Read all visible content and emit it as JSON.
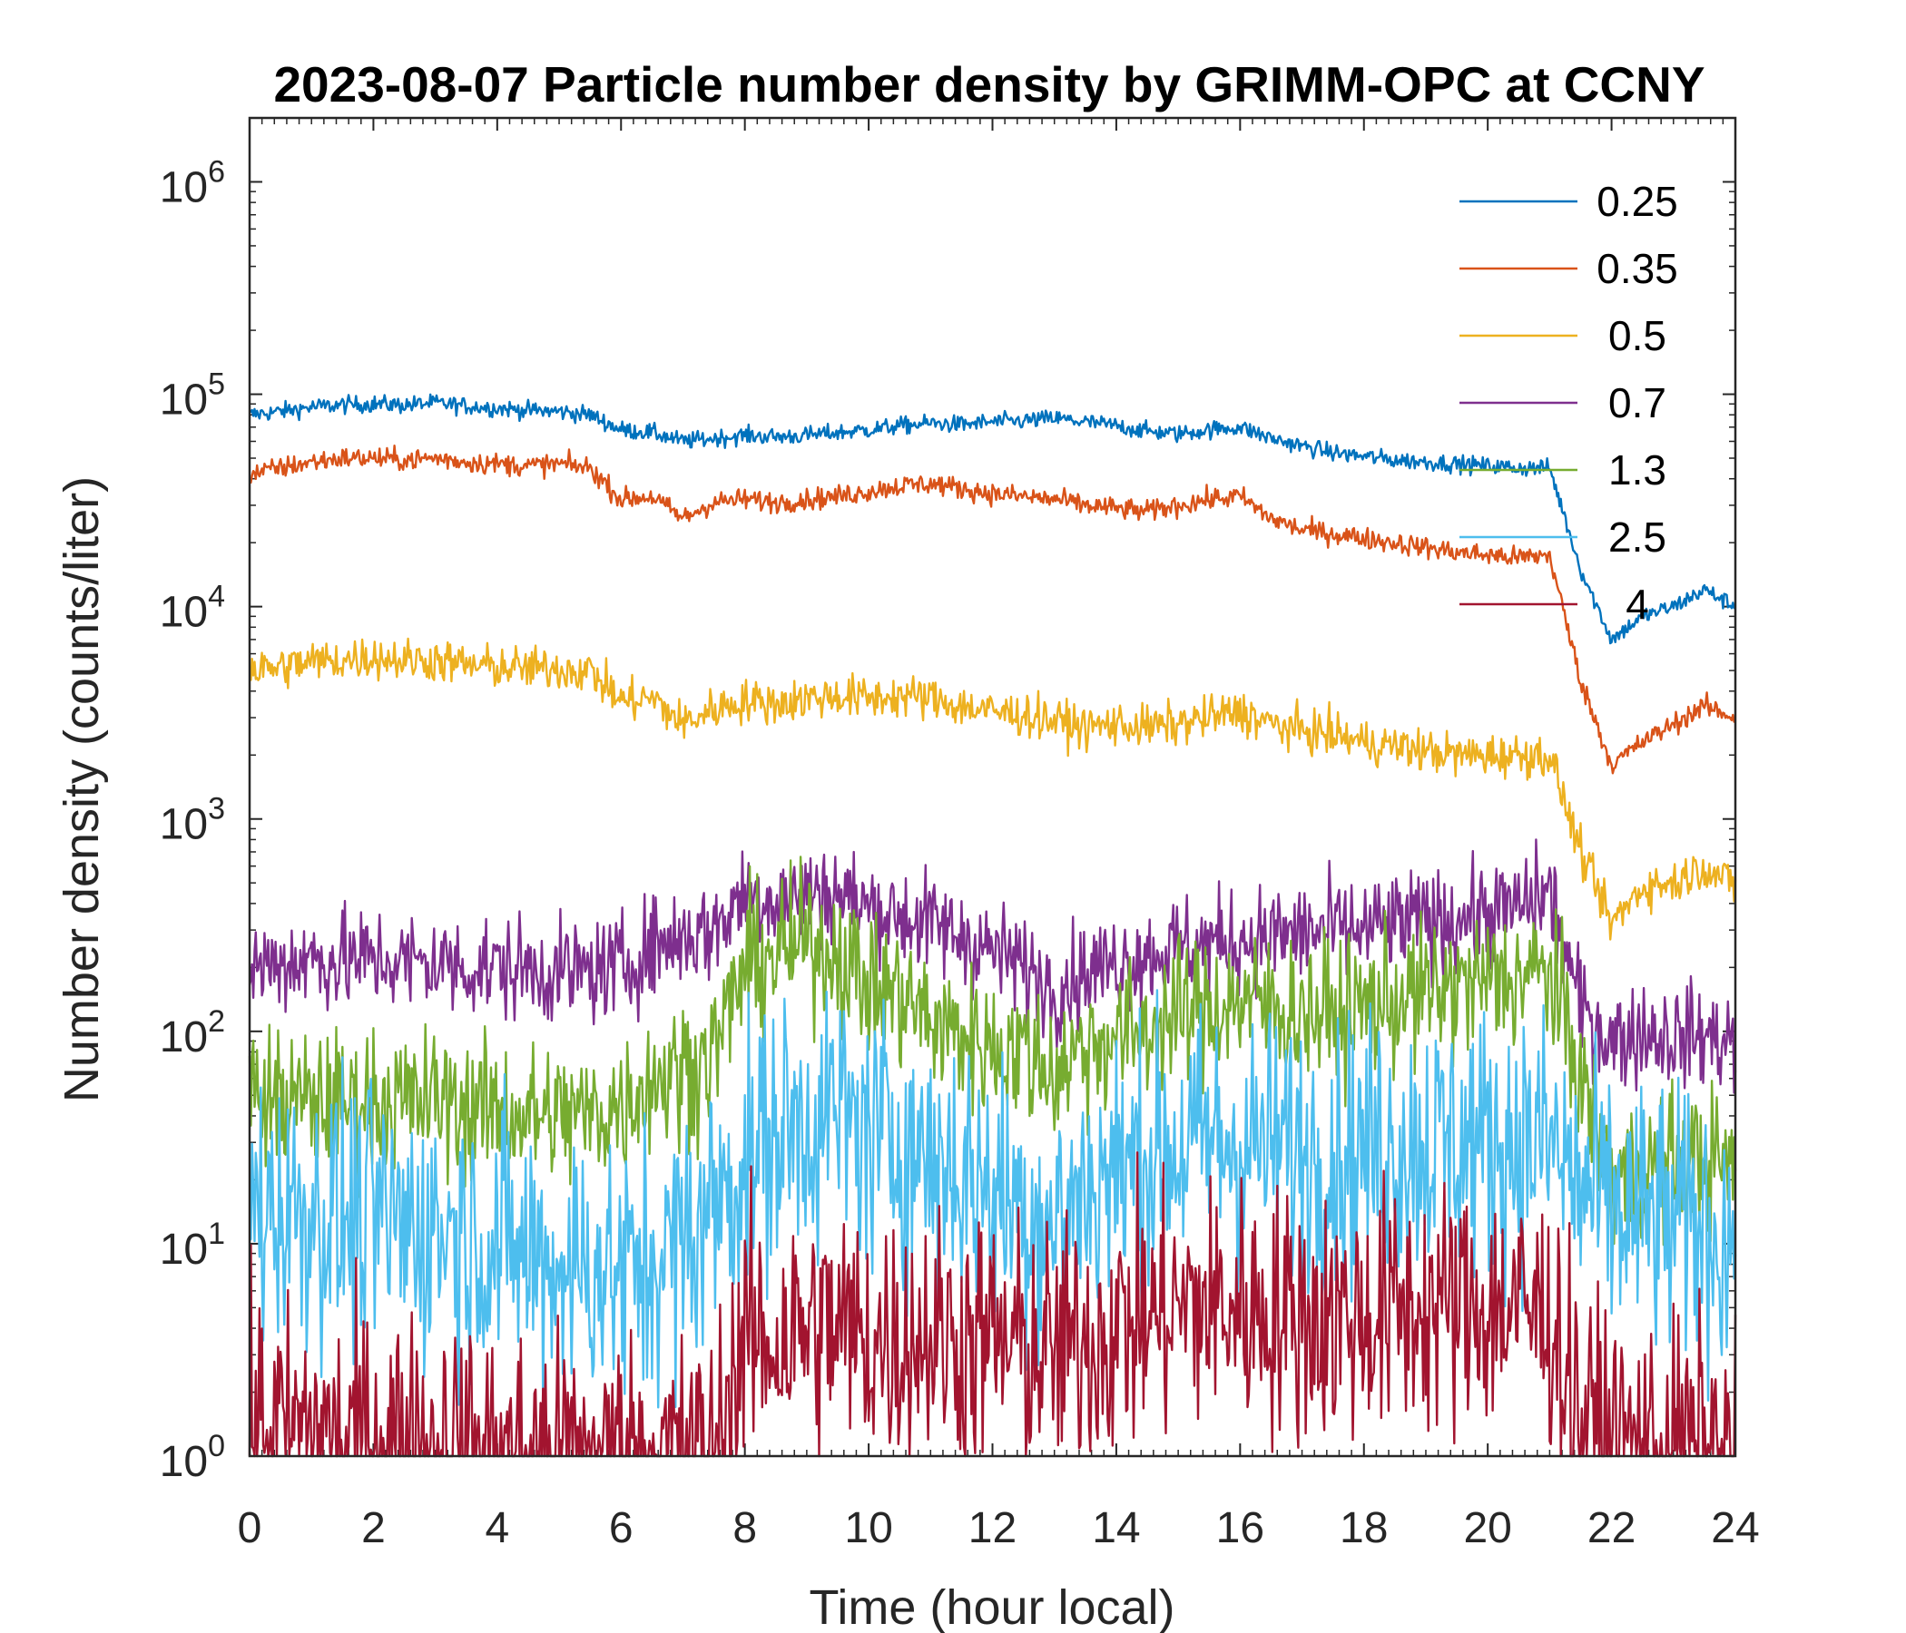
{
  "chart_data": {
    "type": "line",
    "title": "2023-08-07 Particle number density by GRIMM-OPC at CCNY",
    "xlabel": "Time (hour local)",
    "ylabel": "Number density (counts/liter)",
    "xlim": [
      0,
      24
    ],
    "ylim": [
      1,
      2000000
    ],
    "yscale": "log",
    "xticks": [
      "0",
      "2",
      "4",
      "6",
      "8",
      "10",
      "12",
      "14",
      "16",
      "18",
      "20",
      "22",
      "24"
    ],
    "yticks": [
      {
        "base": "10",
        "exp": "0"
      },
      {
        "base": "10",
        "exp": "1"
      },
      {
        "base": "10",
        "exp": "2"
      },
      {
        "base": "10",
        "exp": "3"
      },
      {
        "base": "10",
        "exp": "4"
      },
      {
        "base": "10",
        "exp": "5"
      },
      {
        "base": "10",
        "exp": "6"
      }
    ],
    "legend_position": "top-right",
    "x": [
      0,
      0.5,
      1,
      1.5,
      2,
      2.5,
      3,
      3.5,
      4,
      4.5,
      5,
      5.5,
      6,
      6.5,
      7,
      7.5,
      8,
      8.5,
      9,
      9.5,
      10,
      10.5,
      11,
      11.5,
      12,
      12.5,
      13,
      13.5,
      14,
      14.5,
      15,
      15.5,
      16,
      16.5,
      17,
      17.5,
      18,
      18.5,
      19,
      19.5,
      20,
      20.5,
      21,
      21.5,
      22,
      22.5,
      23,
      23.5,
      24
    ],
    "series": [
      {
        "name": "0.25",
        "color": "#0072BD",
        "noise": 0.02,
        "values": [
          80000,
          83000,
          87000,
          89000,
          90000,
          89000,
          91000,
          88000,
          86000,
          84000,
          83000,
          80000,
          68000,
          66000,
          60000,
          62000,
          64000,
          63000,
          64000,
          66000,
          68000,
          71000,
          73000,
          72000,
          74000,
          75000,
          77000,
          74000,
          71000,
          67000,
          65000,
          68000,
          70000,
          62000,
          57000,
          53000,
          51000,
          49000,
          48000,
          47000,
          46000,
          45000,
          45000,
          15000,
          7000,
          9000,
          10000,
          12000,
          10000
        ]
      },
      {
        "name": "0.35",
        "color": "#D95319",
        "noise": 0.025,
        "values": [
          42000,
          45000,
          48000,
          50000,
          50000,
          49000,
          50000,
          48000,
          47000,
          46000,
          47000,
          45000,
          32000,
          33000,
          26000,
          31000,
          32000,
          31000,
          32000,
          33000,
          35000,
          37000,
          38000,
          36000,
          34000,
          33000,
          32000,
          30000,
          29000,
          28000,
          30000,
          32000,
          33000,
          26000,
          23000,
          22000,
          21000,
          20000,
          19000,
          18000,
          17500,
          17000,
          17500,
          4500,
          1800,
          2300,
          2800,
          3400,
          3000
        ]
      },
      {
        "name": "0.5",
        "color": "#EDB120",
        "noise": 0.05,
        "values": [
          5000,
          5200,
          5500,
          5600,
          5800,
          5600,
          5600,
          5300,
          5200,
          5100,
          5100,
          5000,
          3600,
          3700,
          2800,
          3300,
          3600,
          3500,
          3700,
          3800,
          3700,
          3800,
          3700,
          3400,
          3200,
          3100,
          2900,
          2700,
          2800,
          2700,
          2800,
          3000,
          3200,
          2800,
          2600,
          2500,
          2300,
          2200,
          2100,
          2000,
          2000,
          2000,
          2000,
          700,
          320,
          480,
          500,
          600,
          480
        ]
      },
      {
        "name": "0.7",
        "color": "#7E2F8E",
        "noise": 0.12,
        "values": [
          200,
          210,
          220,
          215,
          220,
          210,
          210,
          200,
          200,
          195,
          190,
          190,
          200,
          250,
          280,
          300,
          450,
          420,
          440,
          450,
          380,
          350,
          320,
          280,
          240,
          200,
          160,
          190,
          210,
          230,
          250,
          260,
          270,
          280,
          290,
          300,
          300,
          320,
          330,
          340,
          360,
          380,
          450,
          130,
          90,
          100,
          95,
          95,
          90
        ]
      },
      {
        "name": "1.3",
        "color": "#77AC30",
        "noise": 0.17,
        "values": [
          50,
          48,
          46,
          45,
          48,
          46,
          48,
          44,
          42,
          40,
          40,
          40,
          45,
          60,
          65,
          80,
          200,
          230,
          260,
          240,
          160,
          150,
          110,
          95,
          85,
          80,
          65,
          85,
          95,
          100,
          120,
          130,
          140,
          130,
          125,
          120,
          130,
          140,
          150,
          160,
          170,
          180,
          190,
          60,
          20,
          22,
          25,
          25,
          22
        ]
      },
      {
        "name": "2.5",
        "color": "#4DBEEE",
        "noise": 0.32,
        "values": [
          15,
          15,
          14,
          13,
          13,
          12,
          12,
          11,
          10,
          9,
          8,
          8,
          7,
          8,
          10,
          15,
          25,
          32,
          38,
          40,
          32,
          30,
          25,
          22,
          18,
          15,
          12,
          18,
          22,
          25,
          28,
          30,
          30,
          28,
          27,
          26,
          28,
          30,
          30,
          30,
          30,
          30,
          30,
          18,
          14,
          13,
          12,
          12,
          10
        ]
      },
      {
        "name": "4",
        "color": "#A2142F",
        "noise": 0.3,
        "values": [
          1.4,
          1.3,
          1.3,
          1.2,
          1.2,
          1.2,
          1.1,
          1.1,
          1.0,
          1.0,
          1.0,
          1.0,
          1.0,
          1.0,
          1.0,
          1.0,
          3.5,
          3.5,
          4.0,
          4.0,
          3.5,
          3.5,
          3.8,
          3.5,
          3.5,
          3.2,
          3.0,
          3.5,
          4.0,
          4.5,
          5.0,
          5.0,
          5.0,
          4.8,
          4.5,
          4.5,
          4.5,
          4.8,
          5.0,
          5.0,
          5.0,
          5.0,
          4.5,
          1.5,
          1.2,
          1.1,
          1.1,
          1.1,
          1.0
        ]
      }
    ]
  }
}
